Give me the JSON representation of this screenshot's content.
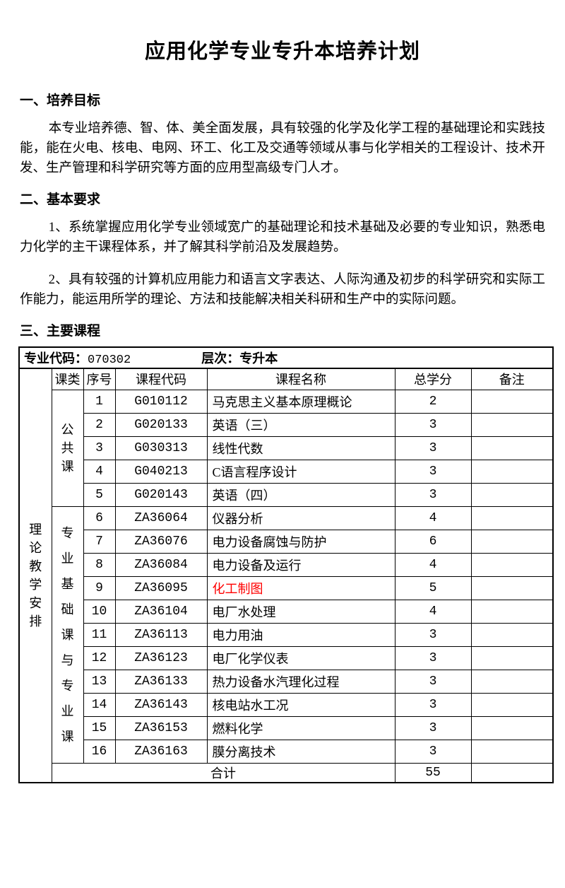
{
  "page": {
    "title": "应用化学专业专升本培养计划"
  },
  "sections": {
    "s1": {
      "heading": "一、培养目标",
      "p1": "本专业培养德、智、体、美全面发展，具有较强的化学及化学工程的基础理论和实践技能，能在火电、核电、电网、环工、化工及交通等领域从事与化学相关的工程设计、技术开发、生产管理和科学研究等方面的应用型高级专门人才。"
    },
    "s2": {
      "heading": "二、基本要求",
      "p1": "1、系统掌握应用化学专业领域宽广的基础理论和技术基础及必要的专业知识，熟悉电力化学的主干课程体系，并了解其科学前沿及发展趋势。",
      "p2": "2、具有较强的计算机应用能力和语言文字表达、人际沟通及初步的科学研究和实际工作能力，能运用所学的理论、方法和技能解决相关科研和生产中的实际问题。"
    },
    "s3": {
      "heading": "三、主要课程"
    }
  },
  "table": {
    "meta": {
      "code_label": "专业代码：",
      "code": "070302",
      "level_label": "层次：",
      "level": "专升本"
    },
    "row_group_label": "理论教学安排",
    "columns": [
      "课类",
      "序号",
      "课程代码",
      "课程名称",
      "总学分",
      "备注"
    ],
    "highlight_color": "#ff0000",
    "groups": [
      {
        "label": "公共课",
        "css": "lh-public",
        "rows": [
          {
            "no": "1",
            "code": "G010112",
            "name": "马克思主义基本原理概论",
            "credits": "2",
            "remark": ""
          },
          {
            "no": "2",
            "code": "G020133",
            "name": "英语（三）",
            "credits": "3",
            "remark": ""
          },
          {
            "no": "3",
            "code": "G030313",
            "name": "线性代数",
            "credits": "3",
            "remark": ""
          },
          {
            "no": "4",
            "code": "G040213",
            "name": "C语言程序设计",
            "credits": "3",
            "remark": ""
          },
          {
            "no": "5",
            "code": "G020143",
            "name": "英语（四）",
            "credits": "3",
            "remark": ""
          }
        ]
      },
      {
        "label": "专业基础课与专业课",
        "css": "lh-major",
        "rows": [
          {
            "no": "6",
            "code": "ZA36064",
            "name": "仪器分析",
            "credits": "4",
            "remark": ""
          },
          {
            "no": "7",
            "code": "ZA36076",
            "name": "电力设备腐蚀与防护",
            "credits": "6",
            "remark": ""
          },
          {
            "no": "8",
            "code": "ZA36084",
            "name": "电力设备及运行",
            "credits": "4",
            "remark": ""
          },
          {
            "no": "9",
            "code": "ZA36095",
            "name": "化工制图",
            "credits": "5",
            "remark": "",
            "red": true
          },
          {
            "no": "10",
            "code": "ZA36104",
            "name": "电厂水处理",
            "credits": "4",
            "remark": ""
          },
          {
            "no": "11",
            "code": "ZA36113",
            "name": "电力用油",
            "credits": "3",
            "remark": ""
          },
          {
            "no": "12",
            "code": "ZA36123",
            "name": "电厂化学仪表",
            "credits": "3",
            "remark": ""
          },
          {
            "no": "13",
            "code": "ZA36133",
            "name": "热力设备水汽理化过程",
            "credits": "3",
            "remark": ""
          },
          {
            "no": "14",
            "code": "ZA36143",
            "name": "核电站水工况",
            "credits": "3",
            "remark": ""
          },
          {
            "no": "15",
            "code": "ZA36153",
            "name": "燃料化学",
            "credits": "3",
            "remark": ""
          },
          {
            "no": "16",
            "code": "ZA36163",
            "name": "膜分离技术",
            "credits": "3",
            "remark": ""
          }
        ]
      }
    ],
    "total_label": "合计",
    "total_credits": "55",
    "total_remark": ""
  }
}
